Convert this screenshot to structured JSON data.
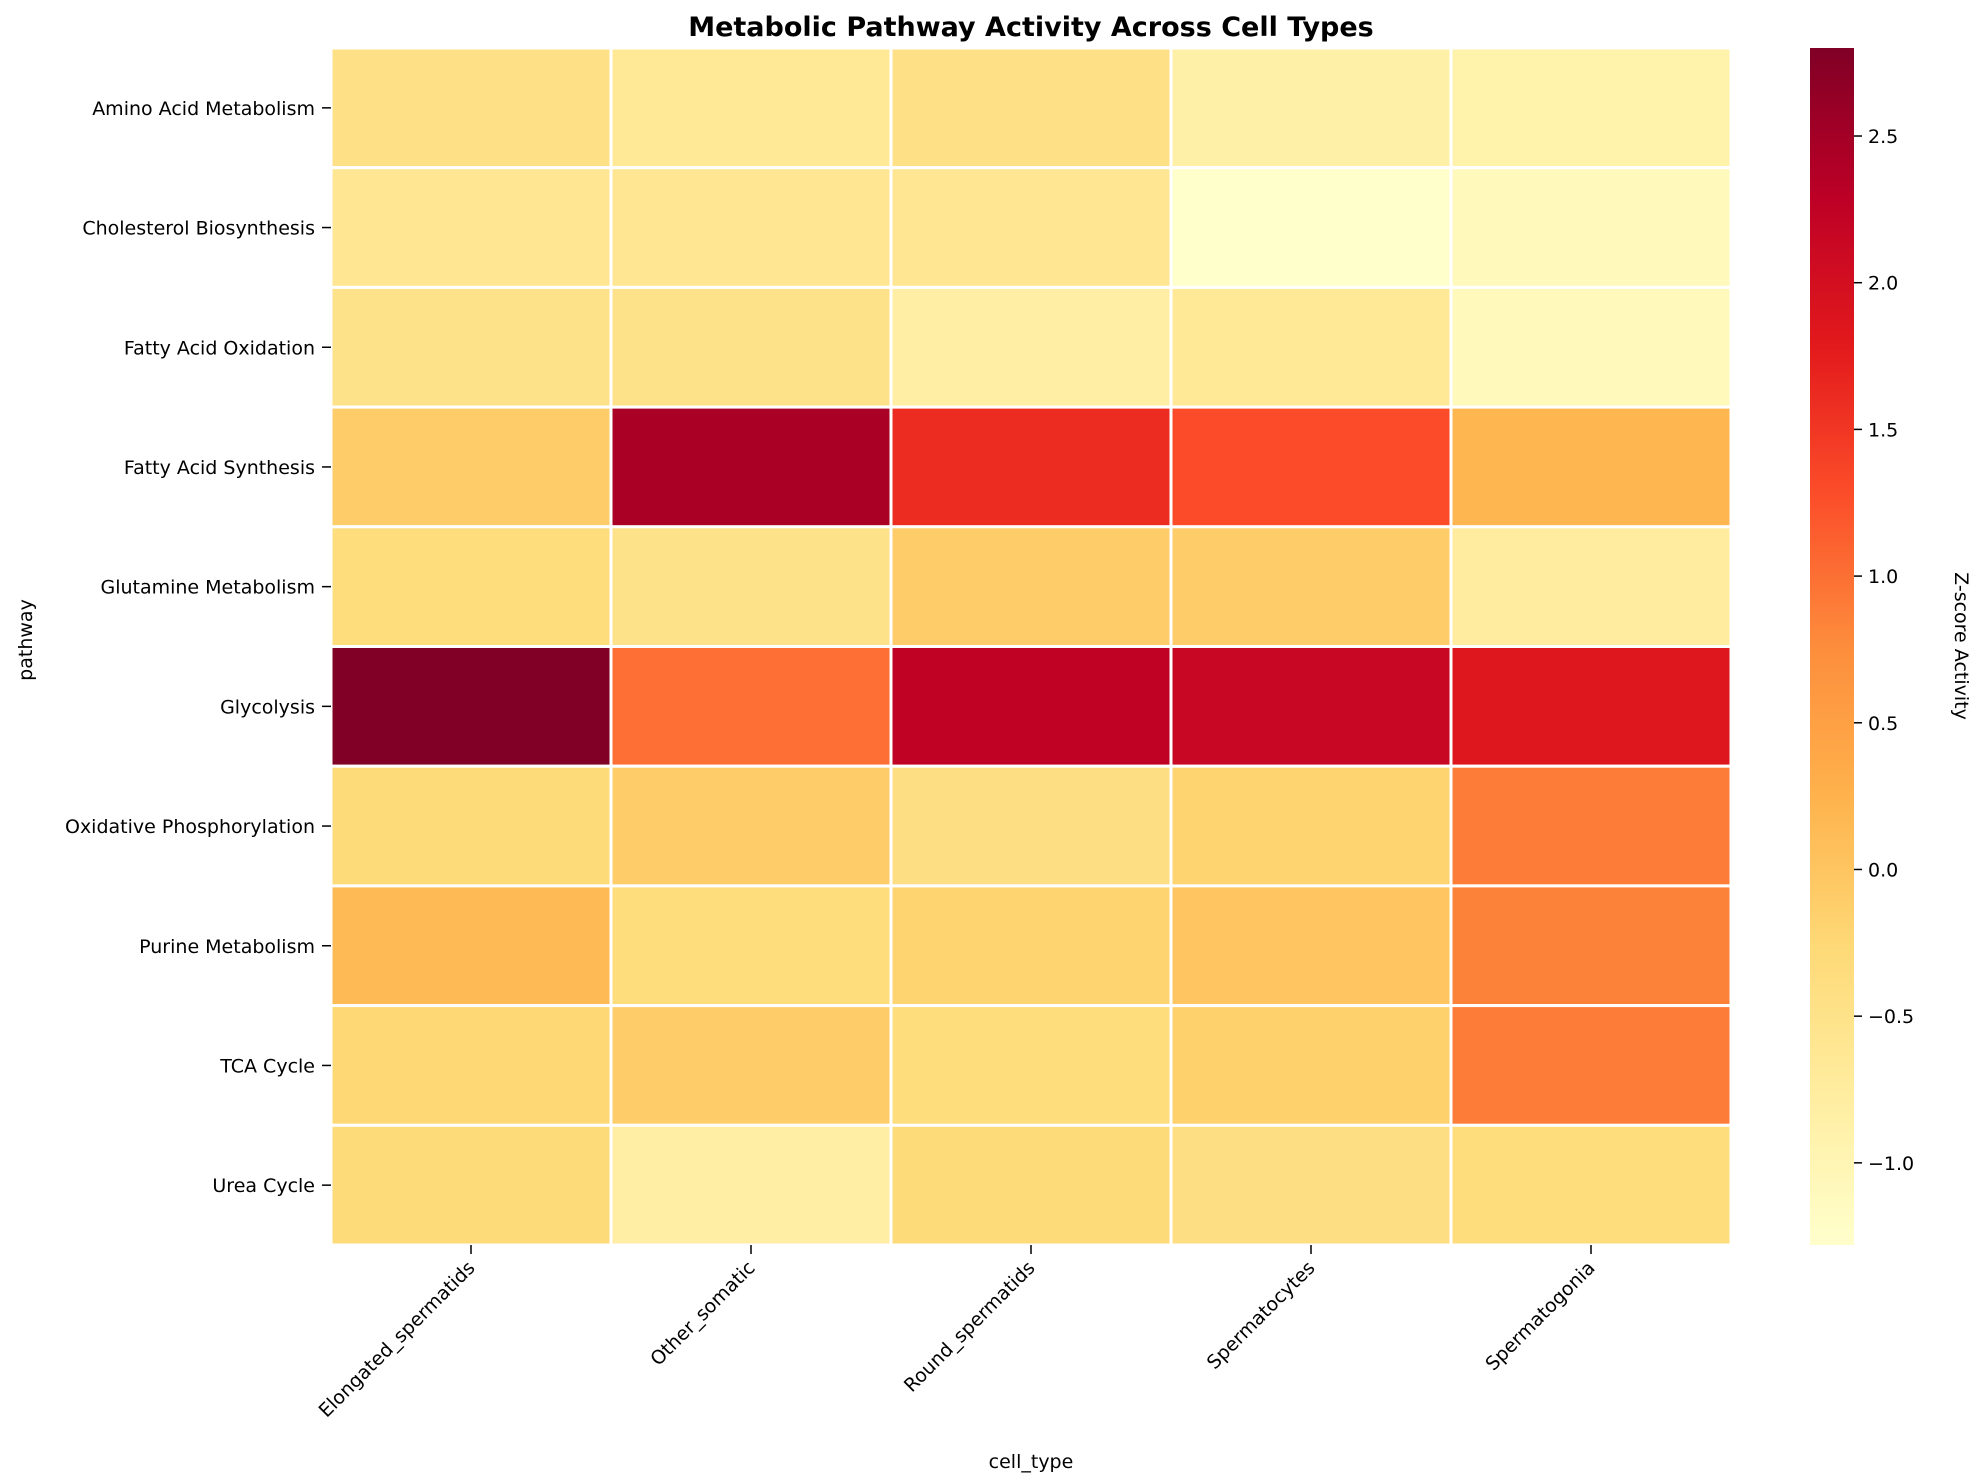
{
  "chart_data": {
    "type": "heatmap",
    "title": "Metabolic Pathway Activity Across Cell Types",
    "xlabel": "cell_type",
    "ylabel": "pathway",
    "colorbar_label": "Z-score Activity",
    "colormap": "YlOrRd",
    "vmin": -1.28,
    "vmax": 2.8,
    "colorbar_ticks": [
      2.5,
      2.0,
      1.5,
      1.0,
      0.5,
      0.0,
      -0.5,
      -1.0
    ],
    "colorbar_tick_labels": [
      "2.5",
      "2.0",
      "1.5",
      "1.0",
      "0.5",
      "0.0",
      "−0.5",
      "−1.0"
    ],
    "columns": [
      "Elongated_spermatids",
      "Other_somatic",
      "Round_spermatids",
      "Spermatocytes",
      "Spermatogonia"
    ],
    "rows": [
      "Amino Acid Metabolism",
      "Cholesterol Biosynthesis",
      "Fatty Acid Oxidation",
      "Fatty Acid Synthesis",
      "Glutamine Metabolism",
      "Glycolysis",
      "Oxidative Phosphorylation",
      "Purine Metabolism",
      "TCA Cycle",
      "Urea Cycle"
    ],
    "values": [
      [
        -0.45,
        -0.65,
        -0.45,
        -0.85,
        -0.9
      ],
      [
        -0.6,
        -0.6,
        -0.6,
        -1.28,
        -1.1
      ],
      [
        -0.5,
        -0.5,
        -0.8,
        -0.65,
        -1.1
      ],
      [
        -0.1,
        2.45,
        1.6,
        1.3,
        0.2
      ],
      [
        -0.35,
        -0.5,
        -0.1,
        -0.1,
        -0.75
      ],
      [
        2.8,
        1.0,
        2.25,
        2.15,
        1.85
      ],
      [
        -0.3,
        -0.1,
        -0.4,
        -0.2,
        0.9
      ],
      [
        0.15,
        -0.35,
        -0.2,
        0.0,
        0.85
      ],
      [
        -0.25,
        -0.1,
        -0.35,
        -0.15,
        0.9
      ],
      [
        -0.3,
        -0.8,
        -0.3,
        -0.4,
        -0.35
      ]
    ]
  }
}
